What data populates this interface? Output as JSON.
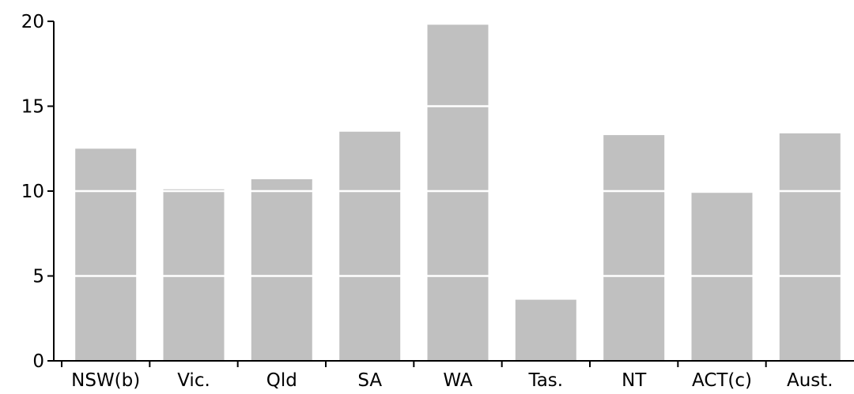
{
  "chart_data": {
    "type": "bar",
    "title": "",
    "xlabel": "",
    "ylabel": "",
    "categories": [
      "NSW(b)",
      "Vic.",
      "Qld",
      "SA",
      "WA",
      "Tas.",
      "NT",
      "ACT(c)",
      "Aust."
    ],
    "values": [
      12.5,
      10.1,
      10.7,
      13.5,
      19.8,
      3.6,
      13.3,
      9.9,
      13.4
    ],
    "ylim": [
      0,
      20
    ],
    "yticks": [
      0,
      5,
      10,
      15,
      20
    ],
    "ytick_labels": [
      "0",
      "5",
      "10",
      "15",
      "20"
    ],
    "grid": true,
    "legend": "none",
    "colors": {
      "bar": "#c0c0c0",
      "gridline": "#ffffff",
      "axis": "#000000"
    }
  }
}
